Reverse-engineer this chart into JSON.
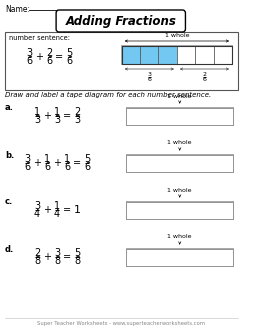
{
  "title": "Adding Fractions",
  "example": {
    "label": "number sentence:",
    "equation": [
      "3/6",
      "+",
      "2/6",
      "=",
      "5/6"
    ],
    "filled": 3,
    "total": 6,
    "bar_color_filled": "#72c8f0",
    "label1": "3/6",
    "label2": "2/6"
  },
  "instruction": "Draw and label a tape diagram for each number sentence.",
  "problems": [
    {
      "letter": "a.",
      "eq_parts": [
        "1/3",
        "+",
        "1/3",
        "=",
        "2/3"
      ]
    },
    {
      "letter": "b.",
      "eq_parts": [
        "3/6",
        "+",
        "1/6",
        "+",
        "1/6",
        "=",
        "5/6"
      ]
    },
    {
      "letter": "c.",
      "eq_parts": [
        "3/4",
        "+",
        "1/4",
        "=",
        "1"
      ]
    },
    {
      "letter": "d.",
      "eq_parts": [
        "2/8",
        "+",
        "3/8",
        "=",
        "5/8"
      ]
    }
  ],
  "footer": "Super Teacher Worksheets - www.superteacherworksheets.com",
  "bg_color": "white"
}
